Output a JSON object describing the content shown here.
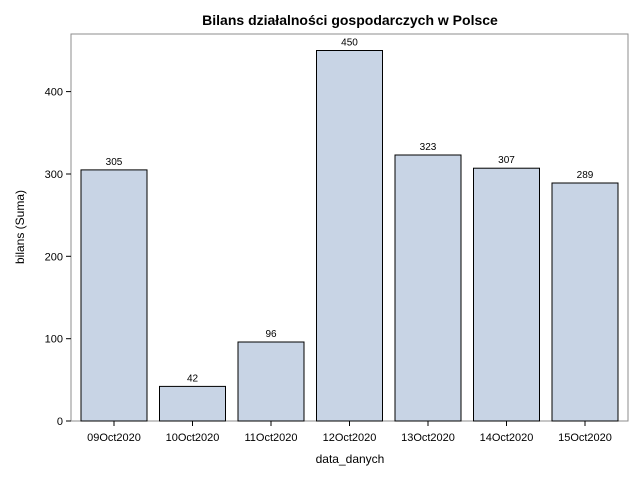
{
  "chart_data": {
    "type": "bar",
    "title": "Bilans działalności gospodarczych w Polsce",
    "xlabel": "data_danych",
    "ylabel": "bilans (Suma)",
    "categories": [
      "09Oct2020",
      "10Oct2020",
      "11Oct2020",
      "12Oct2020",
      "13Oct2020",
      "14Oct2020",
      "15Oct2020"
    ],
    "values": [
      305,
      42,
      96,
      450,
      323,
      307,
      289
    ],
    "yticks": [
      0,
      100,
      200,
      300,
      400
    ],
    "ylim": [
      0,
      470
    ],
    "grid": false,
    "legend": "none",
    "colors": {
      "bar_fill": "#c8d4e5",
      "bar_stroke": "#000000",
      "frame": "#8c8c8c"
    }
  }
}
